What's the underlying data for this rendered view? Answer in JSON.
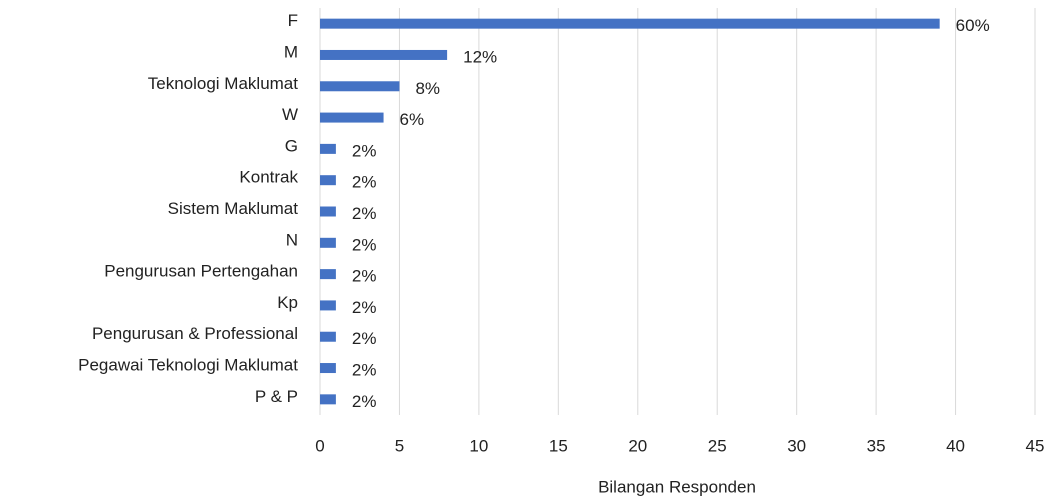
{
  "chart_data": {
    "type": "barh",
    "categories": [
      "F",
      "M",
      "Teknologi Maklumat",
      "W",
      "G",
      "Kontrak",
      "Sistem Maklumat",
      "N",
      "Pengurusan Pertengahan",
      "Kp",
      "Pengurusan & Professional",
      "Pegawai Teknologi Maklumat",
      "P & P"
    ],
    "values": [
      39,
      8,
      5,
      4,
      1,
      1,
      1,
      1,
      1,
      1,
      1,
      1,
      1
    ],
    "value_labels": [
      "60%",
      "12%",
      "8%",
      "6%",
      "2%",
      "2%",
      "2%",
      "2%",
      "2%",
      "2%",
      "2%",
      "2%",
      "2%"
    ],
    "color": "#4472c4",
    "xlabel": "Bilangan Responden",
    "xlim": [
      0,
      45
    ],
    "xticks": [
      0,
      5,
      10,
      15,
      20,
      25,
      30,
      35,
      40,
      45
    ],
    "grid": true
  }
}
